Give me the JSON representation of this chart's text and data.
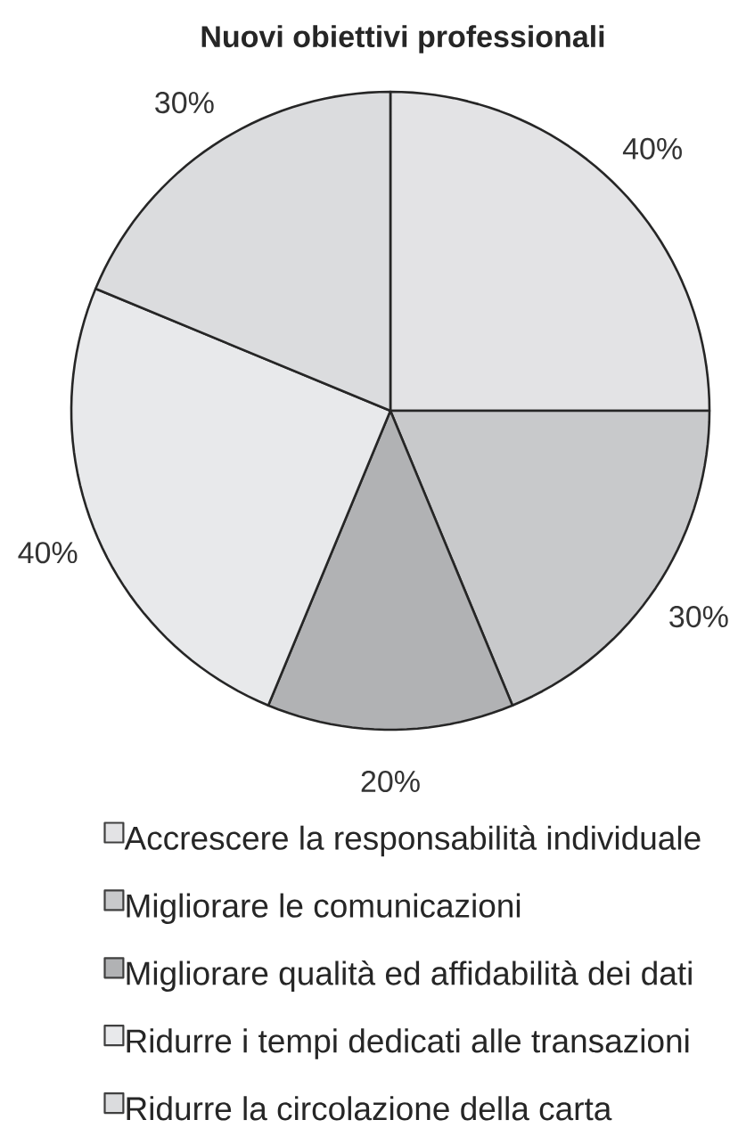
{
  "chart_data": {
    "type": "pie",
    "title": "Nuovi obiettivi professionali",
    "categories": [
      "Accrescere la responsabilità individuale",
      "Migliorare le comunicazioni",
      "Migliorare qualità ed affidabilità dei dati",
      "Ridurre i tempi dedicati alle transazioni",
      "Ridurre la circolazione della carta"
    ],
    "values": [
      40,
      30,
      20,
      40,
      30
    ],
    "colors": [
      "#e3e3e5",
      "#c8c9cb",
      "#b1b2b4",
      "#e8e9eb",
      "#dbdcde"
    ],
    "value_labels": [
      "40%",
      "30%",
      "20%",
      "40%",
      "30%"
    ],
    "legend": "bottom"
  }
}
